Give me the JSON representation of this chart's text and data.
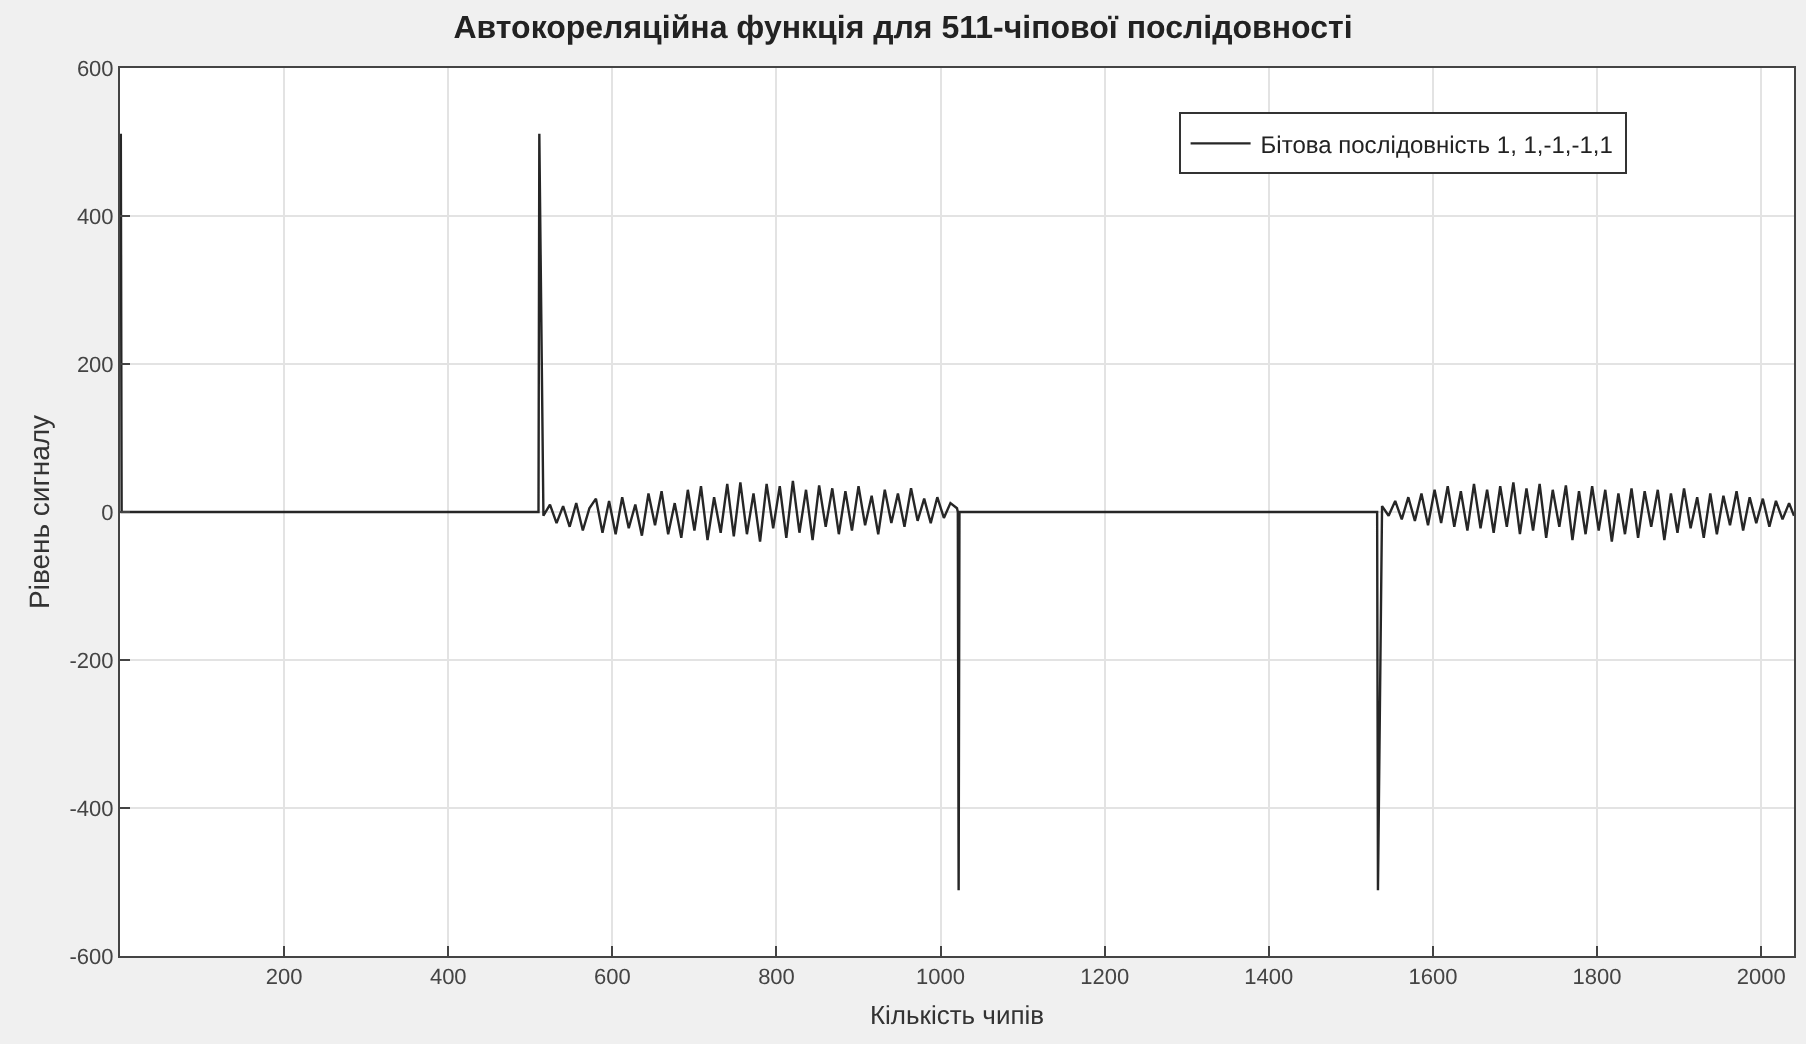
{
  "chart_data": {
    "type": "line",
    "title": "Автокореляційна функція для 511-чіпової послідовності",
    "xlabel": "Кількість чипів",
    "ylabel": "Рівень сигналу",
    "xlim": [
      0,
      2040
    ],
    "xticks": [
      200,
      400,
      600,
      800,
      1000,
      1200,
      1400,
      1600,
      1800,
      2000
    ],
    "ylim": [
      -600,
      600
    ],
    "yticks": [
      -600,
      -400,
      -200,
      0,
      200,
      400,
      600
    ],
    "grid": true,
    "legend": "top right",
    "series": [
      {
        "name": "Бітова послідовність 1, 1,-1,-1,1",
        "color": "#262626",
        "x": [
          1,
          2,
          510,
          511,
          516,
          524,
          532,
          540,
          548,
          556,
          564,
          572,
          580,
          588,
          596,
          604,
          612,
          620,
          628,
          636,
          644,
          652,
          660,
          668,
          676,
          684,
          692,
          700,
          708,
          716,
          724,
          732,
          740,
          748,
          756,
          764,
          772,
          780,
          788,
          796,
          804,
          812,
          820,
          828,
          836,
          844,
          852,
          860,
          868,
          876,
          884,
          892,
          900,
          908,
          916,
          924,
          932,
          940,
          948,
          956,
          964,
          972,
          980,
          988,
          996,
          1004,
          1012,
          1020,
          1021,
          1022,
          1023,
          1532,
          1533,
          1538,
          1546,
          1554,
          1562,
          1570,
          1578,
          1586,
          1594,
          1602,
          1610,
          1618,
          1626,
          1634,
          1642,
          1650,
          1658,
          1666,
          1674,
          1682,
          1690,
          1698,
          1706,
          1714,
          1722,
          1730,
          1738,
          1746,
          1754,
          1762,
          1770,
          1778,
          1786,
          1794,
          1802,
          1810,
          1818,
          1826,
          1834,
          1842,
          1850,
          1858,
          1866,
          1874,
          1882,
          1890,
          1898,
          1906,
          1914,
          1922,
          1930,
          1938,
          1946,
          1954,
          1962,
          1970,
          1978,
          1986,
          1994,
          2002,
          2010,
          2018,
          2026,
          2034,
          2040
        ],
        "values": [
          511,
          0,
          0,
          511,
          -5,
          10,
          -15,
          8,
          -20,
          12,
          -25,
          5,
          18,
          -28,
          15,
          -30,
          20,
          -22,
          10,
          -32,
          25,
          -18,
          28,
          -30,
          12,
          -35,
          30,
          -25,
          35,
          -38,
          20,
          -28,
          38,
          -33,
          40,
          -30,
          25,
          -40,
          38,
          -22,
          35,
          -35,
          42,
          -28,
          30,
          -38,
          36,
          -20,
          32,
          -30,
          28,
          -25,
          35,
          -18,
          22,
          -30,
          30,
          -15,
          25,
          -20,
          32,
          -12,
          18,
          -15,
          20,
          -8,
          12,
          5,
          0,
          -511,
          0,
          0,
          -511,
          8,
          -5,
          15,
          -10,
          20,
          -12,
          25,
          -18,
          30,
          -15,
          35,
          -20,
          28,
          -25,
          38,
          -22,
          30,
          -28,
          35,
          -20,
          40,
          -30,
          32,
          -25,
          38,
          -35,
          30,
          -20,
          36,
          -38,
          28,
          -30,
          35,
          -25,
          30,
          -40,
          25,
          -30,
          32,
          -35,
          28,
          -20,
          30,
          -38,
          25,
          -28,
          32,
          -22,
          20,
          -35,
          25,
          -30,
          22,
          -18,
          28,
          -25,
          20,
          -15,
          18,
          -20,
          15,
          -10,
          12,
          -5
        ]
      }
    ]
  }
}
